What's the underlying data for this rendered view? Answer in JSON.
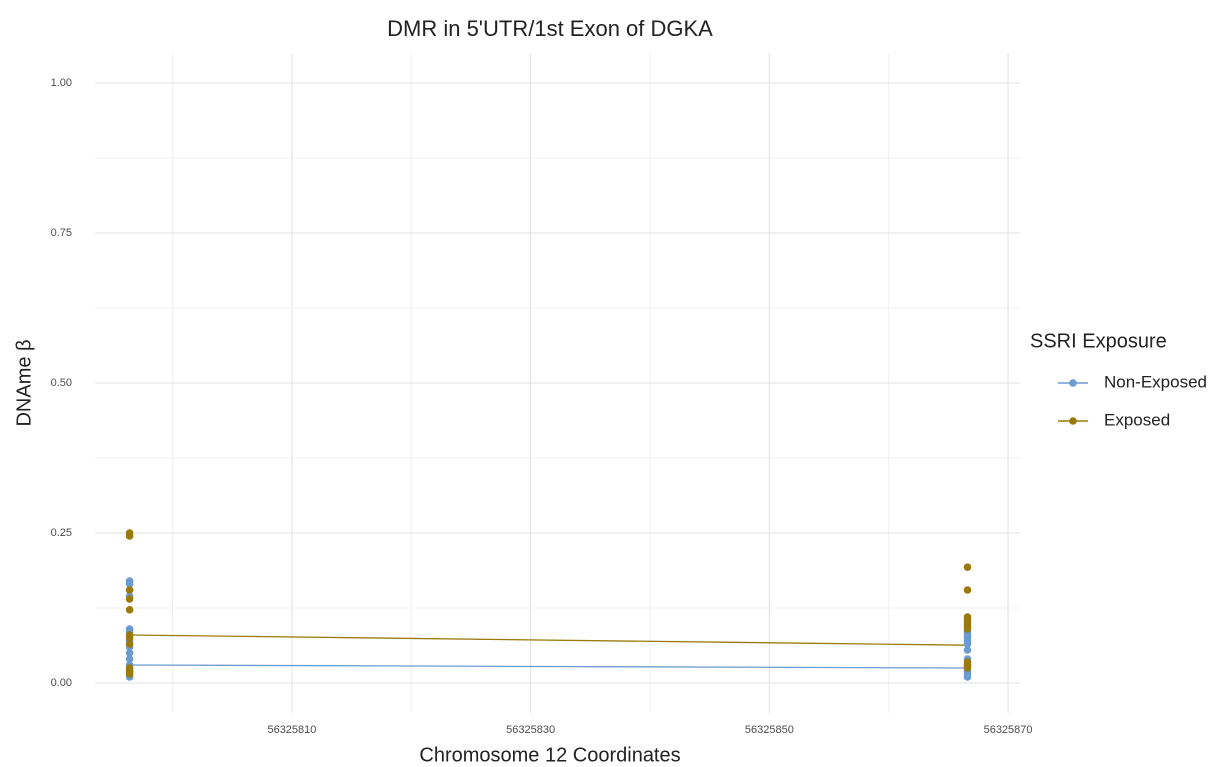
{
  "chart_data": {
    "type": "scatter",
    "title": "DMR in 5'UTR/1st Exon of DGKA",
    "xlabel": "Chromosome 12 Coordinates",
    "ylabel": "DNAme β",
    "legend_title": "SSRI Exposure",
    "legend_position": "right",
    "grid": true,
    "xlim": [
      56325793.5,
      56325871
    ],
    "ylim": [
      -0.05,
      1.05
    ],
    "xticks": [
      56325810,
      56325830,
      56325850,
      56325870
    ],
    "yticks": [
      {
        "value": 0,
        "label": "0.00"
      },
      {
        "value": 0.25,
        "label": "0.25"
      },
      {
        "value": 0.5,
        "label": "0.50"
      },
      {
        "value": 0.75,
        "label": "0.75"
      },
      {
        "value": 1,
        "label": "1.00"
      }
    ],
    "x_minor_grid": [
      56325800,
      56325820,
      56325840,
      56325860
    ],
    "y_minor_grid": [
      0.125,
      0.375,
      0.625,
      0.875
    ],
    "series": [
      {
        "name": "Non-Exposed",
        "color": "#6b9bcf",
        "x": [
          56325796.4,
          56325796.4,
          56325796.4,
          56325796.4,
          56325796.4,
          56325796.4,
          56325796.4,
          56325796.4,
          56325796.4,
          56325796.4,
          56325796.4,
          56325796.4,
          56325796.4,
          56325796.4,
          56325796.4,
          56325866.6,
          56325866.6,
          56325866.6,
          56325866.6,
          56325866.6,
          56325866.6,
          56325866.6,
          56325866.6,
          56325866.6,
          56325866.6,
          56325866.6
        ],
        "values": [
          0.17,
          0.165,
          0.155,
          0.145,
          0.09,
          0.085,
          0.08,
          0.07,
          0.06,
          0.05,
          0.04,
          0.03,
          0.02,
          0.015,
          0.01,
          0.085,
          0.08,
          0.075,
          0.07,
          0.065,
          0.055,
          0.04,
          0.03,
          0.02,
          0.015,
          0.01
        ],
        "trend_x": [
          56325796.4,
          56325866.6
        ],
        "trend_values": [
          0.03,
          0.025
        ]
      },
      {
        "name": "Exposed",
        "color": "#9a7a0c",
        "x": [
          56325796.4,
          56325796.4,
          56325796.4,
          56325796.4,
          56325796.4,
          56325796.4,
          56325796.4,
          56325796.4,
          56325796.4,
          56325796.4,
          56325796.4,
          56325866.6,
          56325866.6,
          56325866.6,
          56325866.6,
          56325866.6,
          56325866.6,
          56325866.6,
          56325866.6,
          56325866.6,
          56325866.6
        ],
        "values": [
          0.25,
          0.245,
          0.155,
          0.14,
          0.122,
          0.08,
          0.075,
          0.065,
          0.025,
          0.02,
          0.015,
          0.193,
          0.155,
          0.11,
          0.105,
          0.1,
          0.095,
          0.09,
          0.035,
          0.03,
          0.025
        ],
        "trend_x": [
          56325796.4,
          56325866.6
        ],
        "trend_values": [
          0.08,
          0.063
        ]
      }
    ]
  }
}
